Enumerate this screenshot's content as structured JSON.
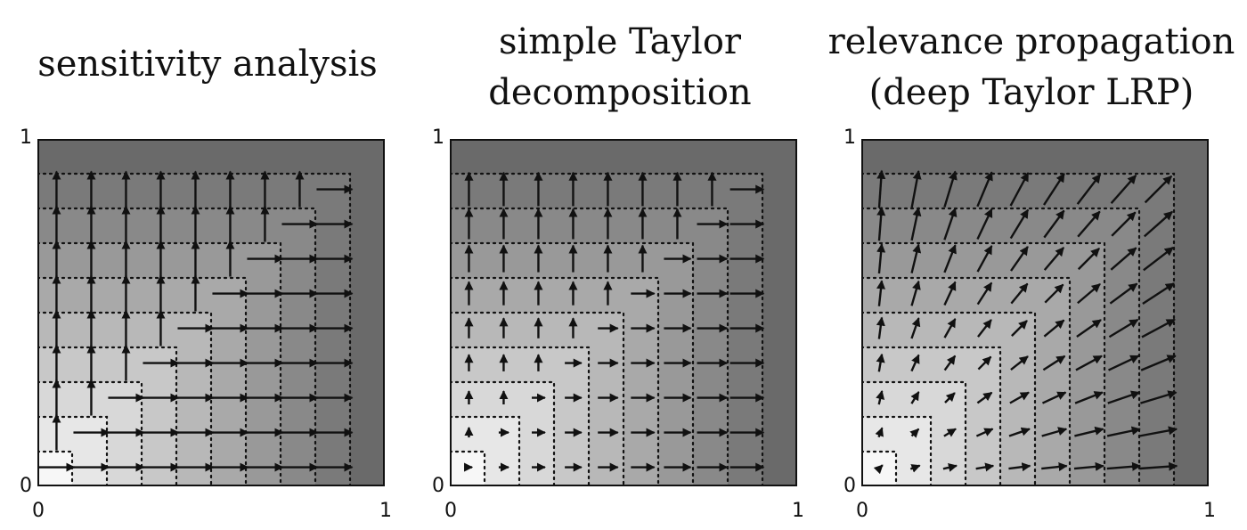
{
  "panels": [
    {
      "title_lines": [
        "sensitivity analysis"
      ],
      "x_ticks": [
        "0",
        "1"
      ],
      "y_ticks": [
        "0",
        "1"
      ],
      "method": "sensitivity"
    },
    {
      "title_lines": [
        "simple Taylor",
        "decomposition"
      ],
      "x_ticks": [
        "0",
        "1"
      ],
      "y_ticks": [
        "0",
        "1"
      ],
      "method": "simple-taylor"
    },
    {
      "title_lines": [
        "relevance propagation",
        "(deep Taylor LRP)"
      ],
      "x_ticks": [
        "0",
        "1"
      ],
      "y_ticks": [
        "0",
        "1"
      ],
      "method": "deep-taylor"
    }
  ],
  "chart_data": {
    "type": "vector-field",
    "x_range": [
      0,
      1
    ],
    "y_range": [
      0,
      1
    ],
    "contour_levels": 9,
    "grid": "9x9 arrows",
    "colors": {
      "low": "#f7f7f7",
      "high": "#6a6a6a",
      "arrow": "#111111",
      "contour": "#111111"
    }
  }
}
